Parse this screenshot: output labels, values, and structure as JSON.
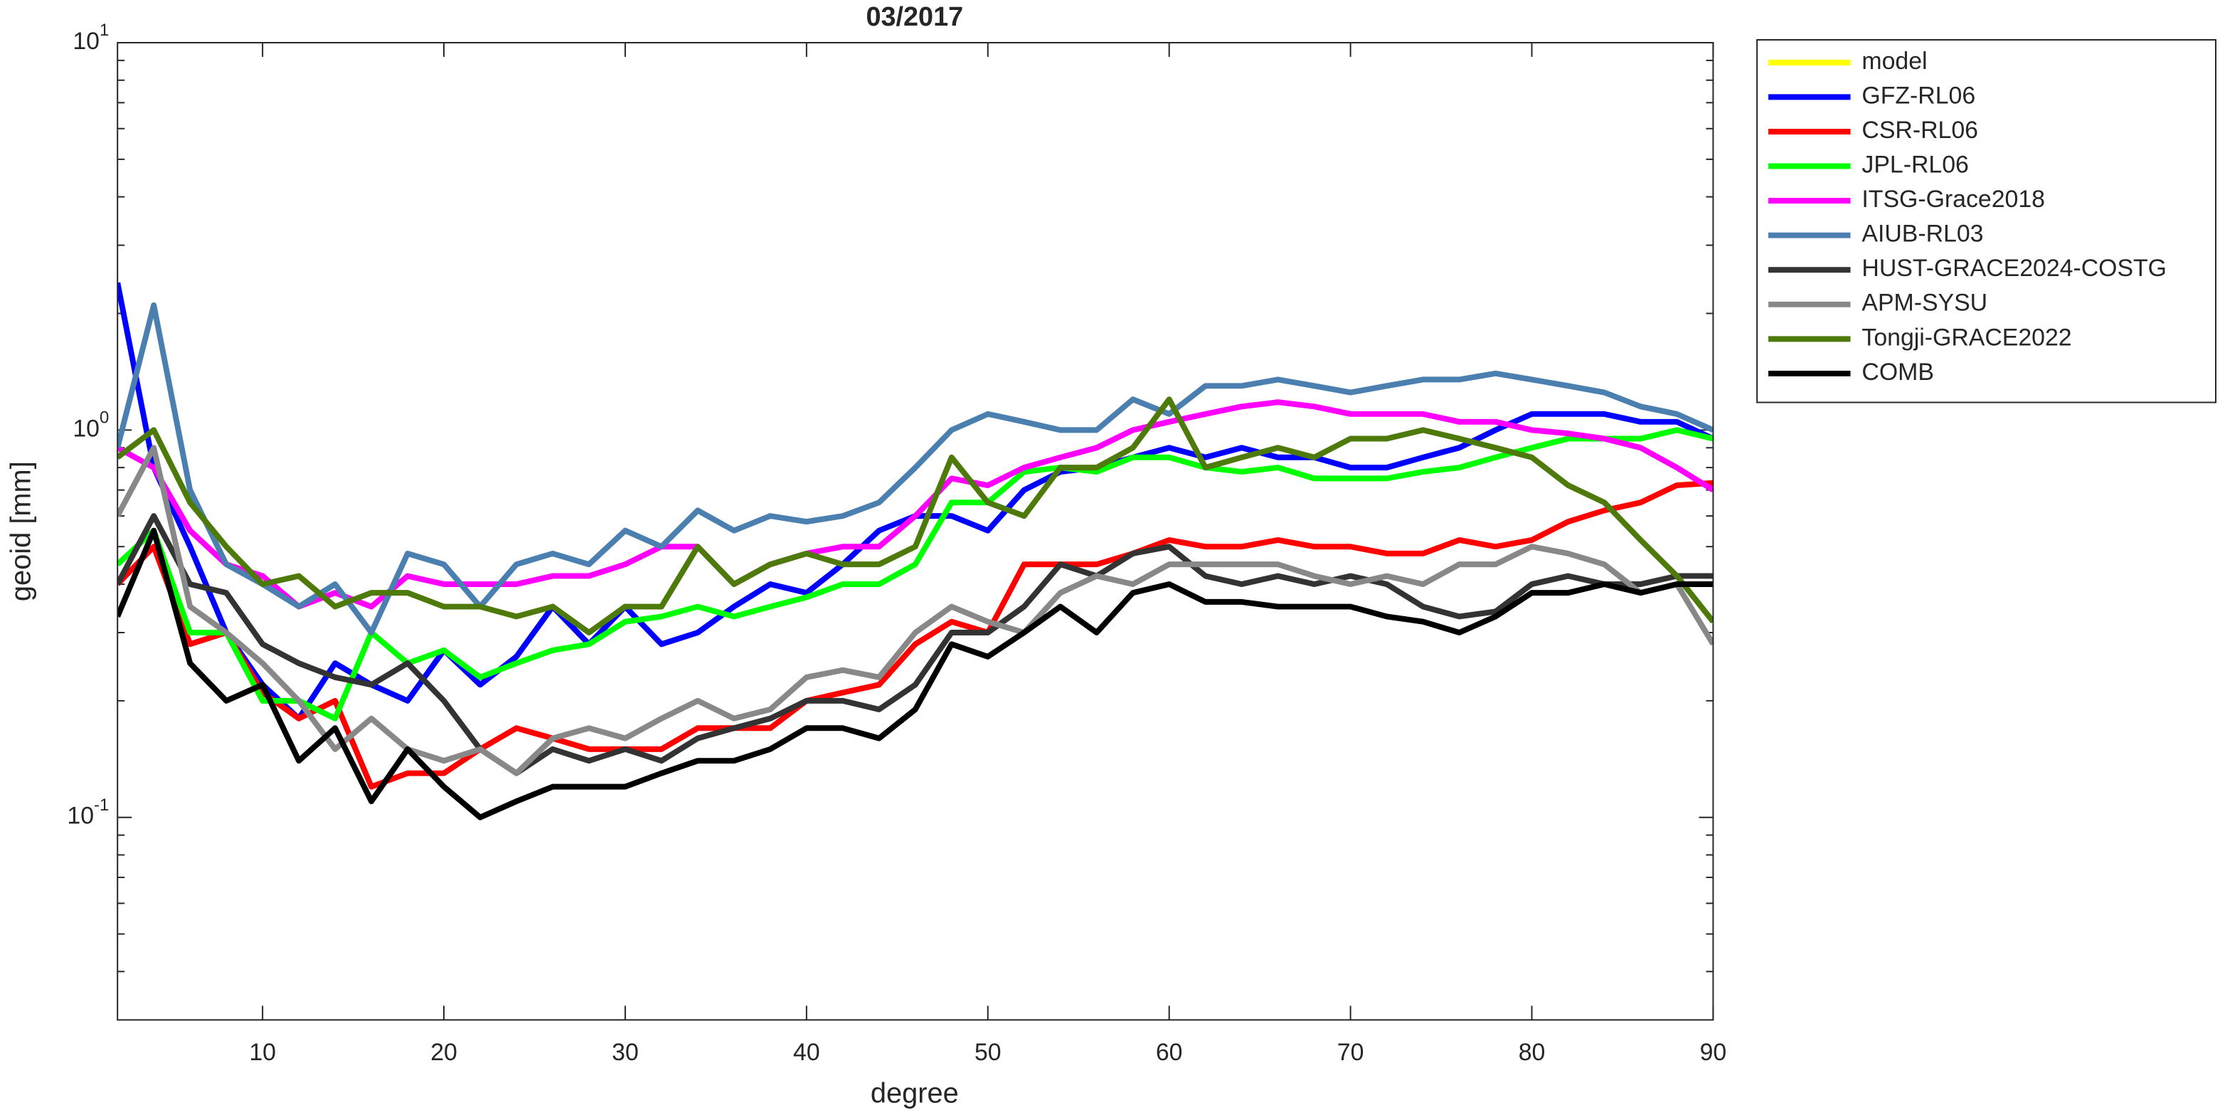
{
  "chart_data": {
    "type": "line",
    "title": "03/2017",
    "xlabel": "degree",
    "ylabel": "geoid [mm]",
    "log_y": true,
    "legend": "outside-right",
    "xlim": [
      2,
      90
    ],
    "xticks": [
      10,
      20,
      30,
      40,
      50,
      60,
      70,
      80,
      90
    ],
    "ylim": [
      0.03,
      10
    ],
    "yticks": [
      {
        "value": 0.1,
        "label": "10^-1"
      },
      {
        "value": 1,
        "label": "10^0"
      },
      {
        "value": 10,
        "label": "10^1"
      }
    ],
    "x": [
      2,
      4,
      6,
      8,
      10,
      12,
      14,
      16,
      18,
      20,
      22,
      24,
      26,
      28,
      30,
      32,
      34,
      36,
      38,
      40,
      42,
      44,
      46,
      48,
      50,
      52,
      54,
      56,
      58,
      60,
      62,
      64,
      66,
      68,
      70,
      72,
      74,
      76,
      78,
      80,
      82,
      84,
      86,
      88,
      90
    ],
    "series": [
      {
        "name": "model",
        "color": "#ffff00",
        "values": [
          null,
          null,
          null,
          null,
          null,
          null,
          null,
          null,
          null,
          null,
          null,
          null,
          null,
          null,
          null,
          null,
          null,
          null,
          null,
          null,
          null,
          null,
          null,
          null,
          null,
          null,
          null,
          null,
          null,
          null,
          null,
          null,
          null,
          null,
          null,
          null,
          null,
          null,
          null,
          null,
          null,
          null,
          null,
          null,
          null
        ]
      },
      {
        "name": "GFZ-RL06",
        "color": "#0000ff",
        "values": [
          2.4,
          0.8,
          0.5,
          0.3,
          0.22,
          0.18,
          0.25,
          0.22,
          0.2,
          0.27,
          0.22,
          0.26,
          0.35,
          0.28,
          0.35,
          0.28,
          0.3,
          0.35,
          0.4,
          0.38,
          0.45,
          0.55,
          0.6,
          0.6,
          0.55,
          0.7,
          0.78,
          0.8,
          0.85,
          0.9,
          0.85,
          0.9,
          0.85,
          0.85,
          0.8,
          0.8,
          0.85,
          0.9,
          1.0,
          1.1,
          1.1,
          1.1,
          1.05,
          1.05,
          0.95
        ]
      },
      {
        "name": "CSR-RL06",
        "color": "#ff0000",
        "values": [
          0.4,
          0.5,
          0.28,
          0.3,
          0.21,
          0.18,
          0.2,
          0.12,
          0.13,
          0.13,
          0.15,
          0.17,
          0.16,
          0.15,
          0.15,
          0.15,
          0.17,
          0.17,
          0.17,
          0.2,
          0.21,
          0.22,
          0.28,
          0.32,
          0.3,
          0.45,
          0.45,
          0.45,
          0.48,
          0.52,
          0.5,
          0.5,
          0.52,
          0.5,
          0.5,
          0.48,
          0.48,
          0.52,
          0.5,
          0.52,
          0.58,
          0.62,
          0.65,
          0.72,
          0.73
        ]
      },
      {
        "name": "JPL-RL06",
        "color": "#00ff00",
        "values": [
          0.45,
          0.55,
          0.3,
          0.3,
          0.2,
          0.2,
          0.18,
          0.3,
          0.25,
          0.27,
          0.23,
          0.25,
          0.27,
          0.28,
          0.32,
          0.33,
          0.35,
          0.33,
          0.35,
          0.37,
          0.4,
          0.4,
          0.45,
          0.65,
          0.65,
          0.78,
          0.8,
          0.78,
          0.85,
          0.85,
          0.8,
          0.78,
          0.8,
          0.75,
          0.75,
          0.75,
          0.78,
          0.8,
          0.85,
          0.9,
          0.95,
          0.95,
          0.95,
          1.0,
          0.95
        ]
      },
      {
        "name": "ITSG-Grace2018",
        "color": "#ff00ff",
        "values": [
          0.9,
          0.8,
          0.55,
          0.45,
          0.42,
          0.35,
          0.38,
          0.35,
          0.42,
          0.4,
          0.4,
          0.4,
          0.42,
          0.42,
          0.45,
          0.5,
          0.5,
          0.4,
          0.45,
          0.48,
          0.5,
          0.5,
          0.6,
          0.75,
          0.72,
          0.8,
          0.85,
          0.9,
          1.0,
          1.05,
          1.1,
          1.15,
          1.18,
          1.15,
          1.1,
          1.1,
          1.1,
          1.05,
          1.05,
          1.0,
          0.98,
          0.95,
          0.9,
          0.8,
          0.7
        ]
      },
      {
        "name": "AIUB-RL03",
        "color": "#4a7fb0",
        "values": [
          0.9,
          2.1,
          0.7,
          0.45,
          0.4,
          0.35,
          0.4,
          0.3,
          0.48,
          0.45,
          0.35,
          0.45,
          0.48,
          0.45,
          0.55,
          0.5,
          0.62,
          0.55,
          0.6,
          0.58,
          0.6,
          0.65,
          0.8,
          1.0,
          1.1,
          1.05,
          1.0,
          1.0,
          1.2,
          1.1,
          1.3,
          1.3,
          1.35,
          1.3,
          1.25,
          1.3,
          1.35,
          1.35,
          1.4,
          1.35,
          1.3,
          1.25,
          1.15,
          1.1,
          1.0
        ]
      },
      {
        "name": "HUST-GRACE2024-COSTG",
        "color": "#333333",
        "values": [
          0.4,
          0.6,
          0.4,
          0.38,
          0.28,
          0.25,
          0.23,
          0.22,
          0.25,
          0.2,
          0.15,
          0.13,
          0.15,
          0.14,
          0.15,
          0.14,
          0.16,
          0.17,
          0.18,
          0.2,
          0.2,
          0.19,
          0.22,
          0.3,
          0.3,
          0.35,
          0.45,
          0.42,
          0.48,
          0.5,
          0.42,
          0.4,
          0.42,
          0.4,
          0.42,
          0.4,
          0.35,
          0.33,
          0.34,
          0.4,
          0.42,
          0.4,
          0.4,
          0.42,
          0.42
        ]
      },
      {
        "name": "APM-SYSU",
        "color": "#888888",
        "values": [
          0.6,
          0.9,
          0.35,
          0.3,
          0.25,
          0.2,
          0.15,
          0.18,
          0.15,
          0.14,
          0.15,
          0.13,
          0.16,
          0.17,
          0.16,
          0.18,
          0.2,
          0.18,
          0.19,
          0.23,
          0.24,
          0.23,
          0.3,
          0.35,
          0.32,
          0.3,
          0.38,
          0.42,
          0.4,
          0.45,
          0.45,
          0.45,
          0.45,
          0.42,
          0.4,
          0.42,
          0.4,
          0.45,
          0.45,
          0.5,
          0.48,
          0.45,
          0.38,
          0.4,
          0.28
        ]
      },
      {
        "name": "Tongji-GRACE2022",
        "color": "#4d7a0a",
        "values": [
          0.85,
          1.0,
          0.65,
          0.5,
          0.4,
          0.42,
          0.35,
          0.38,
          0.38,
          0.35,
          0.35,
          0.33,
          0.35,
          0.3,
          0.35,
          0.35,
          0.5,
          0.4,
          0.45,
          0.48,
          0.45,
          0.45,
          0.5,
          0.85,
          0.65,
          0.6,
          0.8,
          0.8,
          0.9,
          1.2,
          0.8,
          0.85,
          0.9,
          0.85,
          0.95,
          0.95,
          1.0,
          0.95,
          0.9,
          0.85,
          0.72,
          0.65,
          0.52,
          0.42,
          0.32
        ]
      },
      {
        "name": "COMB",
        "color": "#000000",
        "values": [
          0.33,
          0.55,
          0.25,
          0.2,
          0.22,
          0.14,
          0.17,
          0.11,
          0.15,
          0.12,
          0.1,
          0.11,
          0.12,
          0.12,
          0.12,
          0.13,
          0.14,
          0.14,
          0.15,
          0.17,
          0.17,
          0.16,
          0.19,
          0.28,
          0.26,
          0.3,
          0.35,
          0.3,
          0.38,
          0.4,
          0.36,
          0.36,
          0.35,
          0.35,
          0.35,
          0.33,
          0.32,
          0.3,
          0.33,
          0.38,
          0.38,
          0.4,
          0.38,
          0.4,
          0.4
        ]
      }
    ]
  }
}
